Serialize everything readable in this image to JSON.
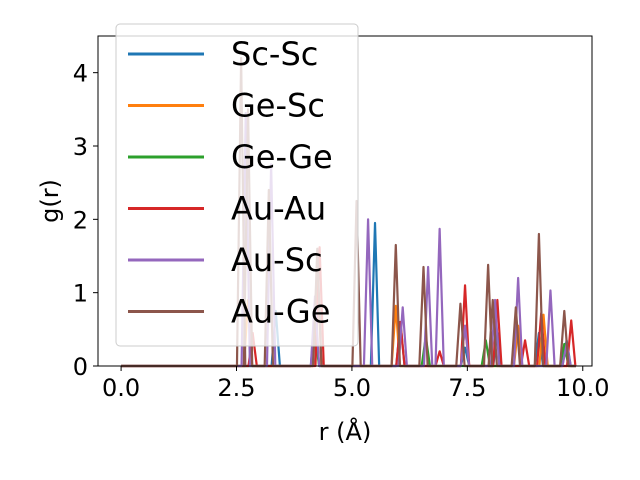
{
  "chart_data": {
    "type": "line",
    "title": "",
    "xlabel": "r (Å)",
    "ylabel": "g(r)",
    "xlim": [
      -0.5,
      10.2
    ],
    "ylim": [
      0,
      4.5
    ],
    "xticks": [
      {
        "value": 0.0,
        "label": "0.0"
      },
      {
        "value": 2.5,
        "label": "2.5"
      },
      {
        "value": 5.0,
        "label": "5.0"
      },
      {
        "value": 7.5,
        "label": "7.5"
      },
      {
        "value": 10.0,
        "label": "10.0"
      }
    ],
    "yticks": [
      {
        "value": 0,
        "label": "0"
      },
      {
        "value": 1,
        "label": "1"
      },
      {
        "value": 2,
        "label": "2"
      },
      {
        "value": 3,
        "label": "3"
      },
      {
        "value": 4,
        "label": "4"
      }
    ],
    "grid": false,
    "legend_position": "top-left",
    "series": [
      {
        "name": "Sc-Sc",
        "color": "#1f77b4",
        "peaks": [
          [
            3.35,
            0.75
          ],
          [
            4.2,
            0.7
          ],
          [
            5.5,
            1.95
          ],
          [
            6.05,
            0.6
          ],
          [
            7.45,
            0.25
          ],
          [
            8.15,
            0.45
          ],
          [
            9.05,
            0.45
          ],
          [
            9.65,
            0.35
          ]
        ]
      },
      {
        "name": "Ge-Sc",
        "color": "#ff7f0e",
        "peaks": [
          [
            2.75,
            0.9
          ],
          [
            4.25,
            1.35
          ],
          [
            5.95,
            0.82
          ],
          [
            7.45,
            0.55
          ],
          [
            8.6,
            0.55
          ],
          [
            9.15,
            0.7
          ]
        ]
      },
      {
        "name": "Ge-Ge",
        "color": "#2ca02c",
        "peaks": [
          [
            4.2,
            0.4
          ],
          [
            6.6,
            0.4
          ],
          [
            7.9,
            0.35
          ],
          [
            9.6,
            0.3
          ]
        ]
      },
      {
        "name": "Au-Au",
        "color": "#d62728",
        "peaks": [
          [
            2.85,
            0.45
          ],
          [
            4.3,
            1.62
          ],
          [
            6.05,
            0.6
          ],
          [
            6.9,
            0.2
          ],
          [
            7.45,
            1.1
          ],
          [
            8.15,
            0.9
          ],
          [
            8.75,
            0.35
          ],
          [
            9.1,
            0.72
          ],
          [
            9.75,
            0.62
          ]
        ]
      },
      {
        "name": "Au-Sc",
        "color": "#9467bd",
        "peaks": [
          [
            2.7,
            3.45
          ],
          [
            3.25,
            2.75
          ],
          [
            4.2,
            0.95
          ],
          [
            5.35,
            2.0
          ],
          [
            6.1,
            0.8
          ],
          [
            6.65,
            1.35
          ],
          [
            6.9,
            1.87
          ],
          [
            7.45,
            0.55
          ],
          [
            8.1,
            0.9
          ],
          [
            8.6,
            1.2
          ],
          [
            9.3,
            1.03
          ],
          [
            9.65,
            0.3
          ]
        ]
      },
      {
        "name": "Au-Ge",
        "color": "#8c564b",
        "peaks": [
          [
            2.6,
            4.2
          ],
          [
            2.75,
            3.5
          ],
          [
            3.2,
            2.4
          ],
          [
            4.25,
            1.6
          ],
          [
            5.1,
            2.25
          ],
          [
            5.95,
            1.65
          ],
          [
            6.55,
            1.35
          ],
          [
            7.35,
            0.85
          ],
          [
            7.95,
            1.38
          ],
          [
            8.05,
            0.9
          ],
          [
            8.55,
            0.8
          ],
          [
            9.05,
            1.8
          ],
          [
            9.6,
            0.75
          ]
        ]
      }
    ]
  }
}
